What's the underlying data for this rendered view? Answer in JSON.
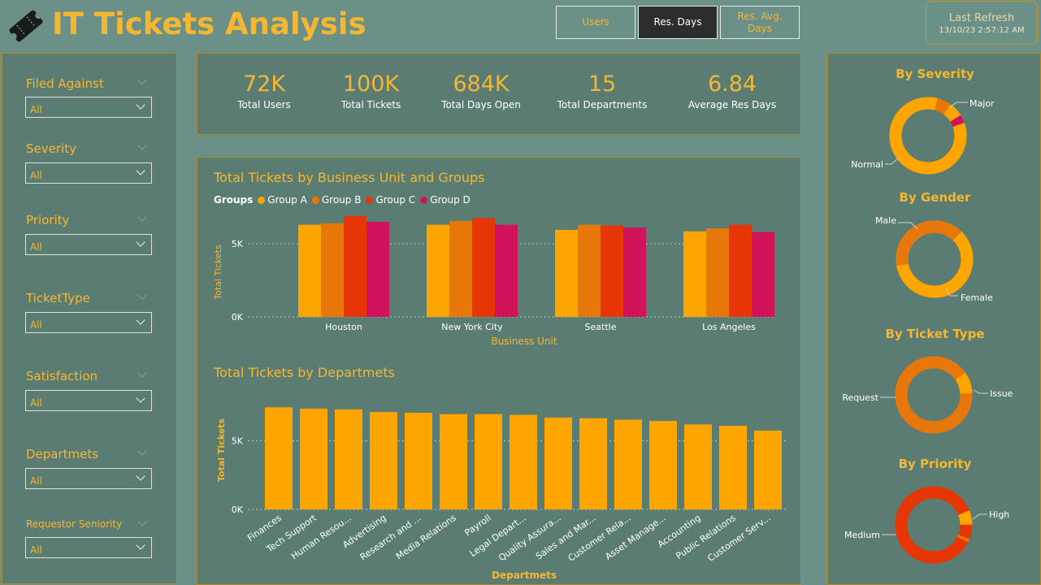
{
  "header": {
    "title": "IT Tickets Analysis",
    "nav": [
      "Users",
      "Res. Days",
      "Res. Avg. Days"
    ],
    "refresh_label": "Last Refresh",
    "refresh_time": "13/10/23 2:57:12 AM"
  },
  "filters": [
    {
      "label": "Filed Against",
      "value": "All"
    },
    {
      "label": "Severity",
      "value": "All"
    },
    {
      "label": "Priority",
      "value": "All"
    },
    {
      "label": "TicketType",
      "value": "All"
    },
    {
      "label": "Satisfaction",
      "value": "All"
    },
    {
      "label": "Departmets",
      "value": "All"
    },
    {
      "label": "Requestor Seniority",
      "value": "All"
    }
  ],
  "kpis": [
    {
      "value": "72K",
      "label": "Total Users"
    },
    {
      "value": "100K",
      "label": "Total Tickets"
    },
    {
      "value": "684K",
      "label": "Total Days Open"
    },
    {
      "value": "15",
      "label": "Total Departments"
    },
    {
      "value": "6.84",
      "label": "Average Res Days"
    }
  ],
  "colors": {
    "accent": "#f5b731",
    "group_a": "#ffa500",
    "group_b": "#e8770a",
    "group_c": "#e63606",
    "group_d": "#d0135a",
    "background": "#6b9087",
    "panel": "#5b7c72"
  },
  "icons": {
    "logo": "ticket-icon"
  },
  "chart_data": [
    {
      "type": "bar",
      "title": "Total Tickets by Business Unit and Groups",
      "legend_title": "Groups",
      "xlabel": "Business Unit",
      "ylabel": "Total Tickets",
      "yticks": [
        "0K",
        "5K"
      ],
      "ylim": [
        0,
        7000
      ],
      "grid": true,
      "legend": "top-left",
      "categories": [
        "Houston",
        "New York City",
        "Seattle",
        "Los Angeles"
      ],
      "series": [
        {
          "name": "Group A",
          "values": [
            6300,
            6300,
            5950,
            5850
          ]
        },
        {
          "name": "Group B",
          "values": [
            6400,
            6550,
            6300,
            6050
          ]
        },
        {
          "name": "Group C",
          "values": [
            6900,
            6750,
            6250,
            6300
          ]
        },
        {
          "name": "Group D",
          "values": [
            6500,
            6300,
            6100,
            5800
          ]
        }
      ]
    },
    {
      "type": "bar",
      "title": "Total Tickets by Departmets",
      "xlabel": "Departmets",
      "ylabel": "Total Tickets",
      "yticks": [
        "0K",
        "5K"
      ],
      "ylim": [
        0,
        8000
      ],
      "grid": true,
      "categories": [
        "Finances",
        "Tech Support",
        "Human Resou...",
        "Advertising",
        "Research and ...",
        "Media Relations",
        "Payroll",
        "Legal Depart...",
        "Quality Assura...",
        "Sales and Mar...",
        "Customer Rela...",
        "Asset Manage...",
        "Accounting",
        "Public Relations",
        "Customer Serv..."
      ],
      "values": [
        7450,
        7350,
        7300,
        7100,
        7050,
        6950,
        6950,
        6900,
        6700,
        6650,
        6550,
        6450,
        6200,
        6100,
        5750
      ]
    },
    {
      "type": "pie",
      "title": "By Severity",
      "labels": [
        "Normal",
        "Major"
      ],
      "values": [
        88,
        12
      ]
    },
    {
      "type": "pie",
      "title": "By Gender",
      "labels": [
        "Male",
        "Female"
      ],
      "values": [
        60,
        40
      ]
    },
    {
      "type": "pie",
      "title": "By Ticket Type",
      "labels": [
        "Request",
        "Issue"
      ],
      "values": [
        91,
        9
      ]
    },
    {
      "type": "pie",
      "title": "By Priority",
      "labels": [
        "Medium",
        "High"
      ],
      "values": [
        94,
        6
      ]
    }
  ]
}
